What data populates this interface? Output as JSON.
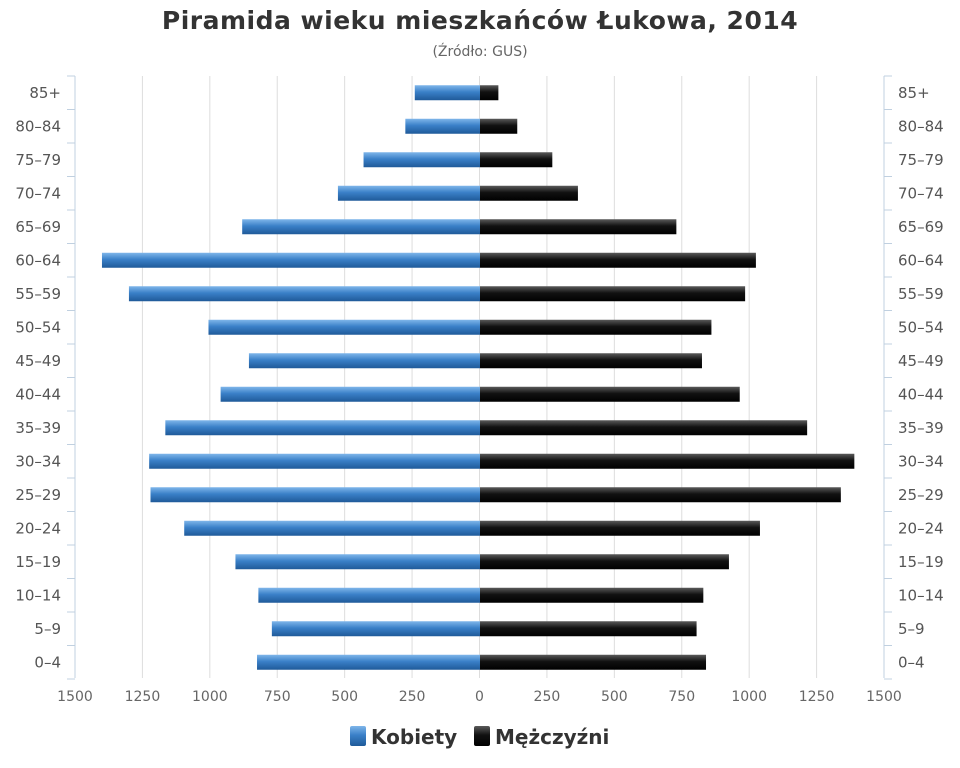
{
  "chart_data": {
    "type": "bar",
    "orientation": "horizontal",
    "title": "Piramida wieku mieszkańców Łukowa, 2014",
    "subtitle": "(Źródło: GUS)",
    "categories": [
      "85+",
      "80-84",
      "75-79",
      "70-74",
      "65-69",
      "60-64",
      "55-59",
      "50-54",
      "45-49",
      "40-44",
      "35-39",
      "30-34",
      "25-29",
      "20-24",
      "15-19",
      "10-14",
      "5-9",
      "0-4"
    ],
    "x_ticks": [
      "1500",
      "1250",
      "1000",
      "750",
      "500",
      "250",
      "0",
      "250",
      "500",
      "750",
      "1000",
      "1250",
      "1500"
    ],
    "xlim": [
      -1500,
      1500
    ],
    "grid": true,
    "legend_position": "bottom",
    "series": [
      {
        "name": "Kobiety",
        "color": "#3a80c8",
        "values": [
          240,
          275,
          430,
          525,
          880,
          1400,
          1300,
          1005,
          855,
          960,
          1165,
          1225,
          1220,
          1095,
          905,
          820,
          770,
          825
        ]
      },
      {
        "name": "Mężczyźni",
        "color": "#111111",
        "values": [
          70,
          140,
          270,
          365,
          730,
          1025,
          985,
          860,
          825,
          965,
          1215,
          1390,
          1340,
          1040,
          925,
          830,
          805,
          840
        ]
      }
    ]
  }
}
